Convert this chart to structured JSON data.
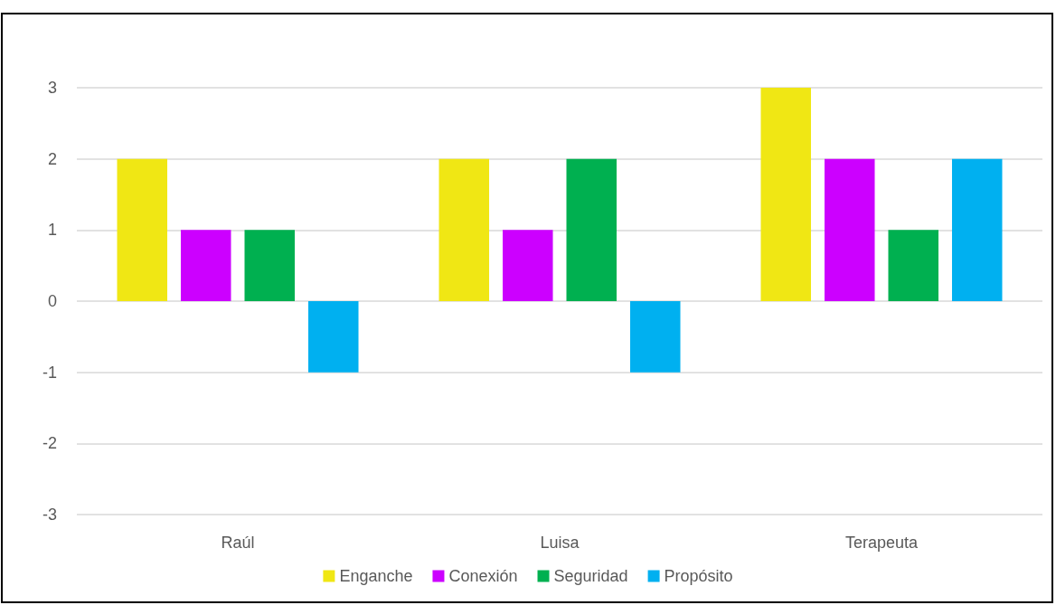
{
  "chart_data": {
    "type": "bar",
    "categories": [
      "Raúl",
      "Luisa",
      "Terapeuta"
    ],
    "series": [
      {
        "name": "Enganche",
        "color": "#f0e714",
        "values": [
          2,
          2,
          3
        ]
      },
      {
        "name": "Conexión",
        "color": "#cc00ff",
        "values": [
          1,
          1,
          2
        ]
      },
      {
        "name": "Seguridad",
        "color": "#00b050",
        "values": [
          1,
          2,
          1
        ]
      },
      {
        "name": "Propósito",
        "color": "#00b0f0",
        "values": [
          -1,
          -1,
          2
        ]
      }
    ],
    "ylim": [
      -3,
      3
    ],
    "yticks": [
      -3,
      -2,
      -1,
      0,
      1,
      2,
      3
    ],
    "grid": "y",
    "legend": "bottom"
  }
}
